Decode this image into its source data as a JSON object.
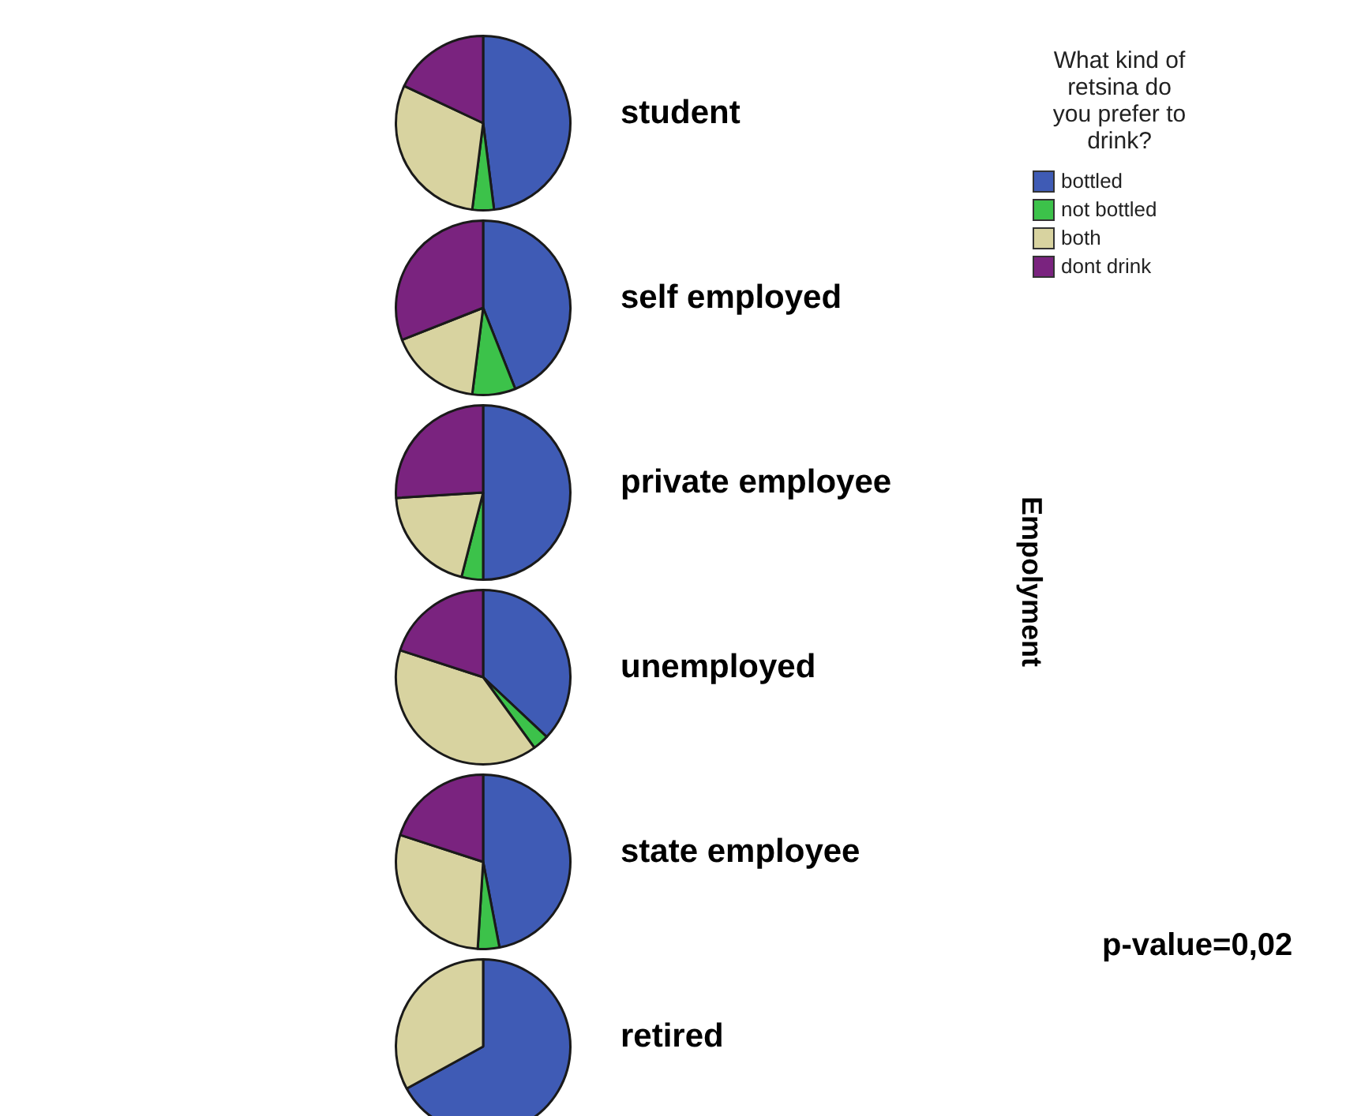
{
  "chart_data": [
    {
      "type": "pie",
      "title": "student",
      "categories": [
        "bottled",
        "not bottled",
        "both",
        "dont drink"
      ],
      "values": [
        48,
        4,
        30,
        18
      ],
      "colors": [
        "#3f5bb5",
        "#3cc24a",
        "#d8d3a0",
        "#7a237f"
      ],
      "legend": "right",
      "legend_title": "What kind of retsina do you prefer to drink?",
      "annotations": [
        "Empolyment",
        "p-value=0,02"
      ]
    },
    {
      "type": "pie",
      "title": "self employed",
      "categories": [
        null,
        null,
        null,
        null
      ],
      "values": [
        44,
        8,
        17,
        31
      ],
      "colors": [
        "#3f5bb5",
        "#3cc24a",
        "#d8d3a0",
        "#7a237f"
      ]
    },
    {
      "type": "pie",
      "title": "private employee",
      "categories": [
        null,
        null,
        null,
        null
      ],
      "values": [
        50,
        4,
        20,
        26
      ],
      "colors": [
        "#3f5bb5",
        "#3cc24a",
        "#d8d3a0",
        "#7a237f"
      ]
    },
    {
      "type": "pie",
      "title": "unemployed",
      "categories": [
        null,
        null,
        null,
        null
      ],
      "values": [
        37,
        3,
        40,
        20
      ],
      "colors": [
        "#3f5bb5",
        "#3cc24a",
        "#d8d3a0",
        "#7a237f"
      ]
    },
    {
      "type": "pie",
      "title": "state employee",
      "categories": [
        null,
        null,
        null,
        null
      ],
      "values": [
        47,
        4,
        29,
        20
      ],
      "colors": [
        "#3f5bb5",
        "#3cc24a",
        "#d8d3a0",
        "#7a237f"
      ]
    },
    {
      "type": "pie",
      "title": "retired",
      "categories": [
        null,
        null,
        null,
        null
      ],
      "values": [
        67,
        0,
        33,
        0
      ],
      "colors": [
        "#3f5bb5",
        "#3cc24a",
        "#d8d3a0",
        "#7a237f"
      ]
    }
  ]
}
